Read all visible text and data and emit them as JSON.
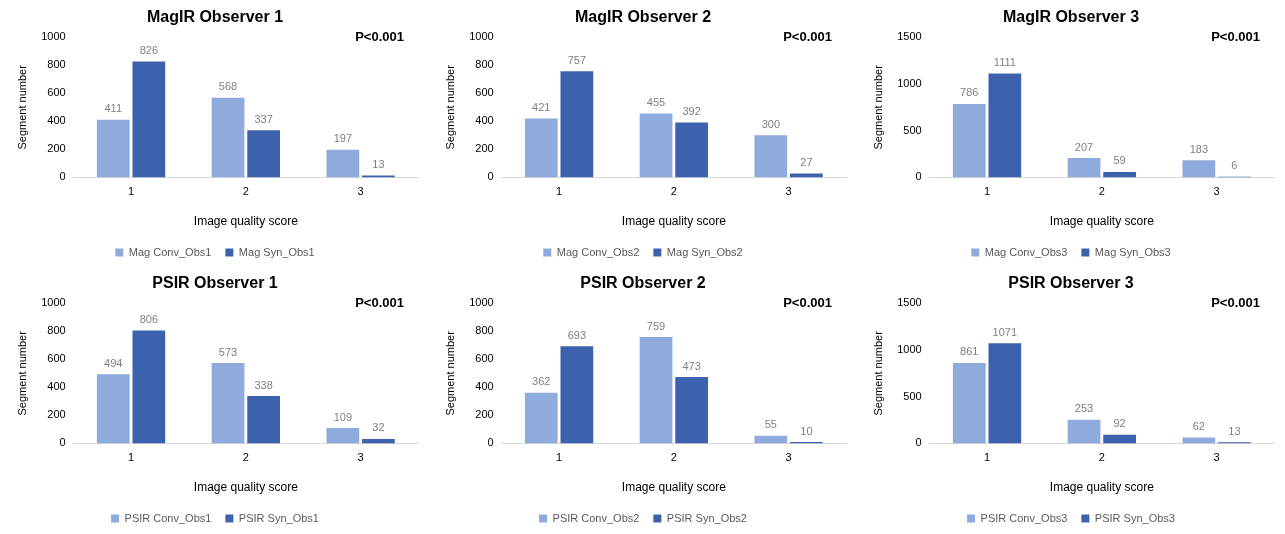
{
  "chart_data": [
    {
      "type": "bar",
      "title": "MagIR Observer 1",
      "categories": [
        "1",
        "2",
        "3"
      ],
      "xlabel": "Image quality score",
      "ylabel": "Segment number",
      "ylim": [
        0,
        1000
      ],
      "yticks": [
        0,
        200,
        400,
        600,
        800,
        1000
      ],
      "grid": false,
      "legend": "bottom",
      "data_labels": true,
      "annotations": [
        "P<0.001"
      ],
      "series": [
        {
          "name": "Mag Conv_Obs1",
          "color": "#8faadc",
          "values": [
            411,
            568,
            197
          ]
        },
        {
          "name": "Mag Syn_Obs1",
          "color": "#3d62ad",
          "values": [
            826,
            337,
            13
          ]
        }
      ]
    },
    {
      "type": "bar",
      "title": "MagIR Observer 2",
      "categories": [
        "1",
        "2",
        "3"
      ],
      "xlabel": "Image quality score",
      "ylabel": "Segment number",
      "ylim": [
        0,
        1000
      ],
      "yticks": [
        0,
        200,
        400,
        600,
        800,
        1000
      ],
      "grid": false,
      "legend": "bottom",
      "data_labels": true,
      "annotations": [
        "P<0.001"
      ],
      "series": [
        {
          "name": "Mag Conv_Obs2",
          "color": "#8faadc",
          "values": [
            421,
            455,
            300
          ]
        },
        {
          "name": "Mag Syn_Obs2",
          "color": "#3d62ad",
          "values": [
            757,
            392,
            27
          ]
        }
      ]
    },
    {
      "type": "bar",
      "title": "MagIR Observer 3",
      "categories": [
        "1",
        "2",
        "3"
      ],
      "xlabel": "Image quality score",
      "ylabel": "Segment number",
      "ylim": [
        0,
        1500
      ],
      "yticks": [
        0,
        500,
        1000,
        1500
      ],
      "grid": false,
      "legend": "bottom",
      "data_labels": true,
      "annotations": [
        "P<0.001"
      ],
      "series": [
        {
          "name": "Mag Conv_Obs3",
          "color": "#8faadc",
          "values": [
            786,
            207,
            183
          ]
        },
        {
          "name": "Mag Syn_Obs3",
          "color": "#3d62ad",
          "values": [
            1111,
            59,
            6
          ]
        }
      ]
    },
    {
      "type": "bar",
      "title": "PSIR Observer 1",
      "categories": [
        "1",
        "2",
        "3"
      ],
      "xlabel": "Image quality score",
      "ylabel": "Segment number",
      "ylim": [
        0,
        1000
      ],
      "yticks": [
        0,
        200,
        400,
        600,
        800,
        1000
      ],
      "grid": false,
      "legend": "bottom",
      "data_labels": true,
      "annotations": [
        "P<0.001"
      ],
      "series": [
        {
          "name": "PSIR Conv_Obs1",
          "color": "#8faadc",
          "values": [
            494,
            573,
            109
          ]
        },
        {
          "name": "PSIR Syn_Obs1",
          "color": "#3d62ad",
          "values": [
            806,
            338,
            32
          ]
        }
      ]
    },
    {
      "type": "bar",
      "title": "PSIR Observer 2",
      "categories": [
        "1",
        "2",
        "3"
      ],
      "xlabel": "Image quality score",
      "ylabel": "Segment number",
      "ylim": [
        0,
        1000
      ],
      "yticks": [
        0,
        200,
        400,
        600,
        800,
        1000
      ],
      "grid": false,
      "legend": "bottom",
      "data_labels": true,
      "annotations": [
        "P<0.001"
      ],
      "series": [
        {
          "name": "PSIR Conv_Obs2",
          "color": "#8faadc",
          "values": [
            362,
            759,
            55
          ]
        },
        {
          "name": "PSIR Syn_Obs2",
          "color": "#3d62ad",
          "values": [
            693,
            473,
            10
          ]
        }
      ]
    },
    {
      "type": "bar",
      "title": "PSIR Observer 3",
      "categories": [
        "1",
        "2",
        "3"
      ],
      "xlabel": "Image quality score",
      "ylabel": "Segment number",
      "ylim": [
        0,
        1500
      ],
      "yticks": [
        0,
        500,
        1000,
        1500
      ],
      "grid": false,
      "legend": "bottom",
      "data_labels": true,
      "annotations": [
        "P<0.001"
      ],
      "series": [
        {
          "name": "PSIR Conv_Obs3",
          "color": "#8faadc",
          "values": [
            861,
            253,
            62
          ]
        },
        {
          "name": "PSIR Syn_Obs3",
          "color": "#3d62ad",
          "values": [
            1071,
            92,
            13
          ]
        }
      ]
    }
  ]
}
